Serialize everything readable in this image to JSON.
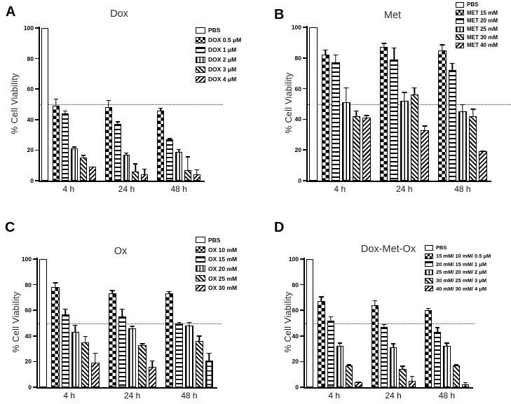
{
  "colors": {
    "foreground": "#000000",
    "background": "#ffffff",
    "reference_line": "#333333"
  },
  "chart_data": [
    {
      "panel": "A",
      "type": "bar",
      "title": "Dox",
      "ylabel": "% Cell Viability",
      "ylim": [
        0,
        100
      ],
      "yticks": [
        0,
        20,
        40,
        60,
        80,
        100
      ],
      "categories": [
        "4 h",
        "24 h",
        "48 h"
      ],
      "reference_line_y": 50,
      "legend_position": "top-right",
      "grid": false,
      "control": {
        "name": "PBS",
        "pattern": "open",
        "value": 100,
        "error": 0
      },
      "series": [
        {
          "name": "DOX 0.5 μM",
          "pattern": "checker",
          "values": [
            49,
            48,
            46
          ],
          "errors": [
            5,
            5,
            2
          ]
        },
        {
          "name": "DOX 1 μM",
          "pattern": "hlines",
          "values": [
            44,
            37,
            27
          ],
          "errors": [
            2,
            2,
            1
          ]
        },
        {
          "name": "DOX 2 μM",
          "pattern": "vlines",
          "values": [
            21,
            17,
            19
          ],
          "errors": [
            1.5,
            1.5,
            2
          ]
        },
        {
          "name": "DOX 3 μM",
          "pattern": "diag-back",
          "values": [
            15,
            6,
            7
          ],
          "errors": [
            2,
            5.5,
            9
          ]
        },
        {
          "name": "DOX 4 μM",
          "pattern": "diag-fwd",
          "values": [
            9,
            4,
            4
          ],
          "errors": [
            0.5,
            4,
            3.5
          ]
        }
      ]
    },
    {
      "panel": "B",
      "type": "bar",
      "title": "Met",
      "ylabel": "% Cell Viability",
      "ylim": [
        0,
        100
      ],
      "yticks": [
        0,
        20,
        40,
        60,
        80,
        100
      ],
      "categories": [
        "4 h",
        "24 h",
        "48 h"
      ],
      "reference_line_y": 50,
      "legend_position": "top-right",
      "grid": false,
      "control": {
        "name": "PBS",
        "pattern": "open",
        "value": 100,
        "error": 0
      },
      "series": [
        {
          "name": "MET 15 mM",
          "pattern": "checker",
          "values": [
            82,
            87,
            85
          ],
          "errors": [
            3.5,
            3,
            4
          ]
        },
        {
          "name": "MET 20 mM",
          "pattern": "hlines",
          "values": [
            77,
            79,
            72
          ],
          "errors": [
            5.5,
            8,
            5
          ]
        },
        {
          "name": "MET 25 mM",
          "pattern": "vlines",
          "values": [
            51,
            52,
            45
          ],
          "errors": [
            10,
            6,
            5
          ]
        },
        {
          "name": "MET 30 mM",
          "pattern": "diag-back",
          "values": [
            42,
            56,
            42
          ],
          "errors": [
            4,
            5,
            5
          ]
        },
        {
          "name": "MET 40 mM",
          "pattern": "diag-fwd",
          "values": [
            41,
            33,
            19
          ],
          "errors": [
            2,
            3,
            1
          ]
        }
      ]
    },
    {
      "panel": "C",
      "type": "bar",
      "title": "Ox",
      "ylabel": "% Cell Viability",
      "ylim": [
        0,
        100
      ],
      "yticks": [
        0,
        20,
        40,
        60,
        80,
        100
      ],
      "categories": [
        "4 h",
        "24 h",
        "48 h"
      ],
      "reference_line_y": 50,
      "legend_position": "top-right",
      "grid": false,
      "control": {
        "name": "PBS",
        "pattern": "open",
        "value": 100,
        "error": 0
      },
      "series": [
        {
          "name": "OX 10 mM",
          "pattern": "checker",
          "values": [
            78,
            73,
            73
          ],
          "errors": [
            4,
            3,
            2
          ]
        },
        {
          "name": "OX 15 mM",
          "pattern": "hlines",
          "values": [
            57,
            55,
            50
          ],
          "errors": [
            4.5,
            6.5,
            1
          ]
        },
        {
          "name": "OX 20 mM",
          "pattern": "vlines",
          "values": [
            43,
            46,
            48
          ],
          "errors": [
            6,
            2,
            3
          ]
        },
        {
          "name": "OX 25 mM",
          "pattern": "diag-back",
          "values": [
            35,
            33,
            36
          ],
          "errors": [
            5,
            1.5,
            4.5
          ]
        },
        {
          "name": "OX 30 mM",
          "pattern": [
            "diag-fwd",
            "diag-fwd",
            "brick"
          ],
          "values": [
            19,
            16,
            21
          ],
          "errors": [
            8,
            5,
            6
          ]
        }
      ]
    },
    {
      "panel": "D",
      "type": "bar",
      "title": "Dox-Met-Ox",
      "ylabel": "% Cell Viability",
      "ylim": [
        0,
        100
      ],
      "yticks": [
        0,
        20,
        40,
        60,
        80,
        100
      ],
      "categories": [
        "4 h",
        "24 h",
        "48 h"
      ],
      "reference_line_y": 50,
      "legend_position": "top-right",
      "grid": false,
      "control": {
        "name": "PBS",
        "pattern": "open",
        "value": 100,
        "error": 0
      },
      "series": [
        {
          "name": "15 mM/ 10 mM/ 0.5 μM",
          "pattern": "checker",
          "values": [
            67,
            64,
            60
          ],
          "errors": [
            4,
            4,
            2
          ]
        },
        {
          "name": "20 mM/ 15 mM/ 1 μM",
          "pattern": "hlines",
          "values": [
            52,
            47,
            43
          ],
          "errors": [
            3.5,
            2.5,
            4
          ]
        },
        {
          "name": "25 mM/ 20 mM/ 2 μM",
          "pattern": "vlines",
          "values": [
            32,
            31,
            32
          ],
          "errors": [
            3,
            3.5,
            3
          ]
        },
        {
          "name": "30 mM/ 25 mM/ 3 μM",
          "pattern": "diag-back",
          "values": [
            17,
            14,
            17
          ],
          "errors": [
            1,
            3,
            1
          ]
        },
        {
          "name": "40 mM/ 30 mM/ 4 μM",
          "pattern": "diag-fwd",
          "values": [
            4,
            5,
            2
          ],
          "errors": [
            0.5,
            4,
            2
          ]
        }
      ]
    }
  ]
}
